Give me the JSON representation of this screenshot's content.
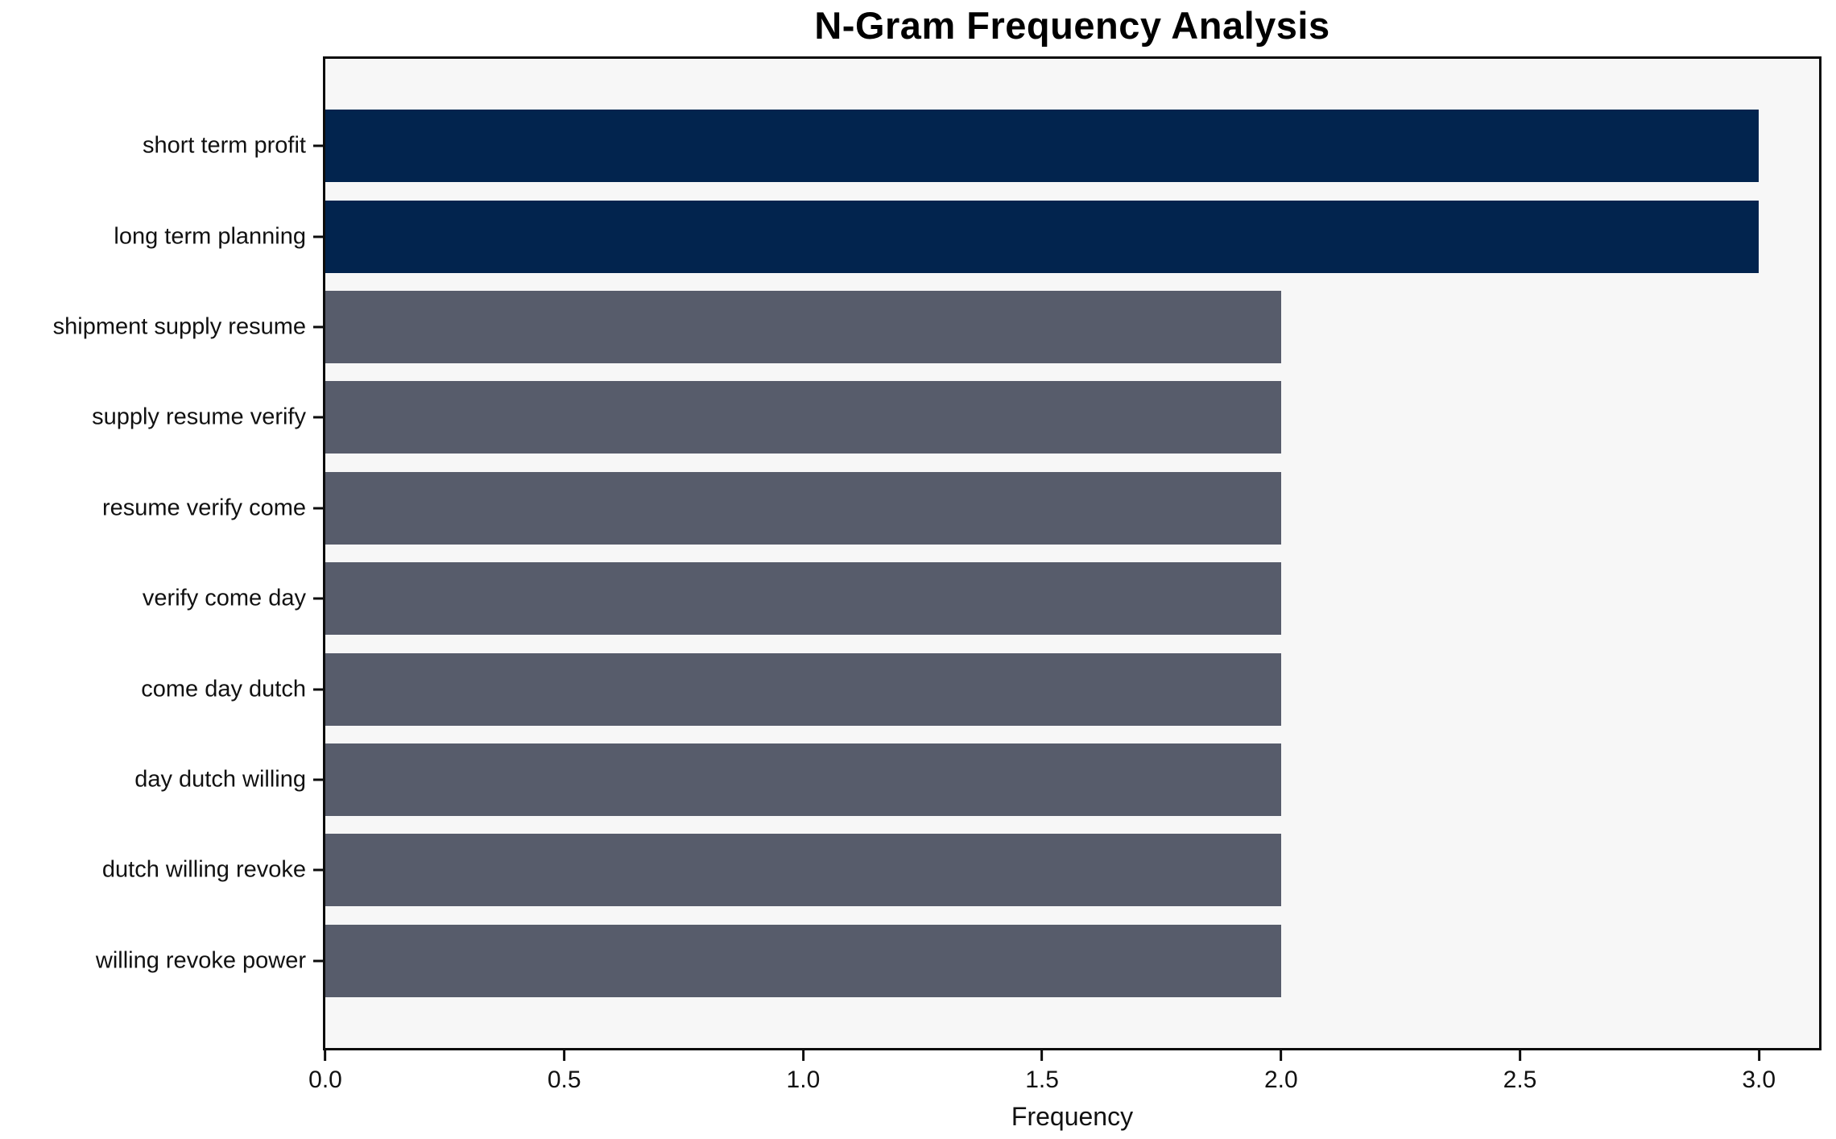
{
  "chart_data": {
    "type": "bar",
    "orientation": "horizontal",
    "title": "N-Gram Frequency Analysis",
    "xlabel": "Frequency",
    "ylabel": "",
    "categories": [
      "short term profit",
      "long term planning",
      "shipment supply resume",
      "supply resume verify",
      "resume verify come",
      "verify come day",
      "come day dutch",
      "day dutch willing",
      "dutch willing revoke",
      "willing revoke power"
    ],
    "values": [
      3,
      3,
      2,
      2,
      2,
      2,
      2,
      2,
      2,
      2
    ],
    "bar_colors": [
      "#02244e",
      "#02244e",
      "#575c6b",
      "#575c6b",
      "#575c6b",
      "#575c6b",
      "#575c6b",
      "#575c6b",
      "#575c6b",
      "#575c6b"
    ],
    "xlim": [
      0,
      3.126
    ],
    "xticks": [
      0.0,
      0.5,
      1.0,
      1.5,
      2.0,
      2.5,
      3.0
    ],
    "xtick_labels": [
      "0.0",
      "0.5",
      "1.0",
      "1.5",
      "2.0",
      "2.5",
      "3.0"
    ],
    "grid": "off",
    "legend": "none",
    "colors": {
      "highlight": "#02244e",
      "default": "#575c6b",
      "plot_background": "#f7f7f7",
      "figure_background": "#ffffff",
      "spine": "#0c0c0c"
    }
  }
}
